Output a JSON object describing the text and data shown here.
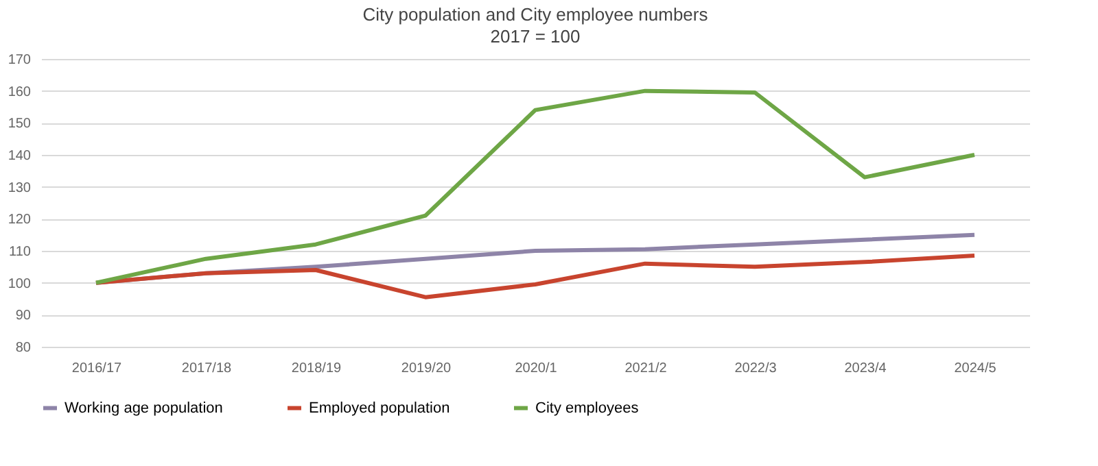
{
  "chart_data": {
    "type": "line",
    "title": "City population and City employee numbers",
    "subtitle": "2017 = 100",
    "categories": [
      "2016/17",
      "2017/18",
      "2018/19",
      "2019/20",
      "2020/1",
      "2021/2",
      "2022/3",
      "2023/4",
      "2024/5"
    ],
    "series": [
      {
        "name": "Working age population",
        "color": "#8e84a8",
        "values": [
          100,
          103,
          105,
          107.5,
          110,
          110.5,
          112,
          113.5,
          115
        ]
      },
      {
        "name": "Employed population",
        "color": "#c8442e",
        "values": [
          100,
          103,
          104,
          95.5,
          99.5,
          106,
          105,
          106.5,
          108.5
        ]
      },
      {
        "name": "City employees",
        "color": "#6ea646",
        "values": [
          100,
          107.5,
          112,
          121,
          154,
          160,
          159.5,
          133,
          140
        ]
      }
    ],
    "ylim": [
      80,
      170
    ],
    "yticks": [
      80,
      90,
      100,
      110,
      120,
      130,
      140,
      150,
      160,
      170
    ],
    "grid": "y",
    "legend": "bottom",
    "marker": "none",
    "line_style": "solid"
  }
}
